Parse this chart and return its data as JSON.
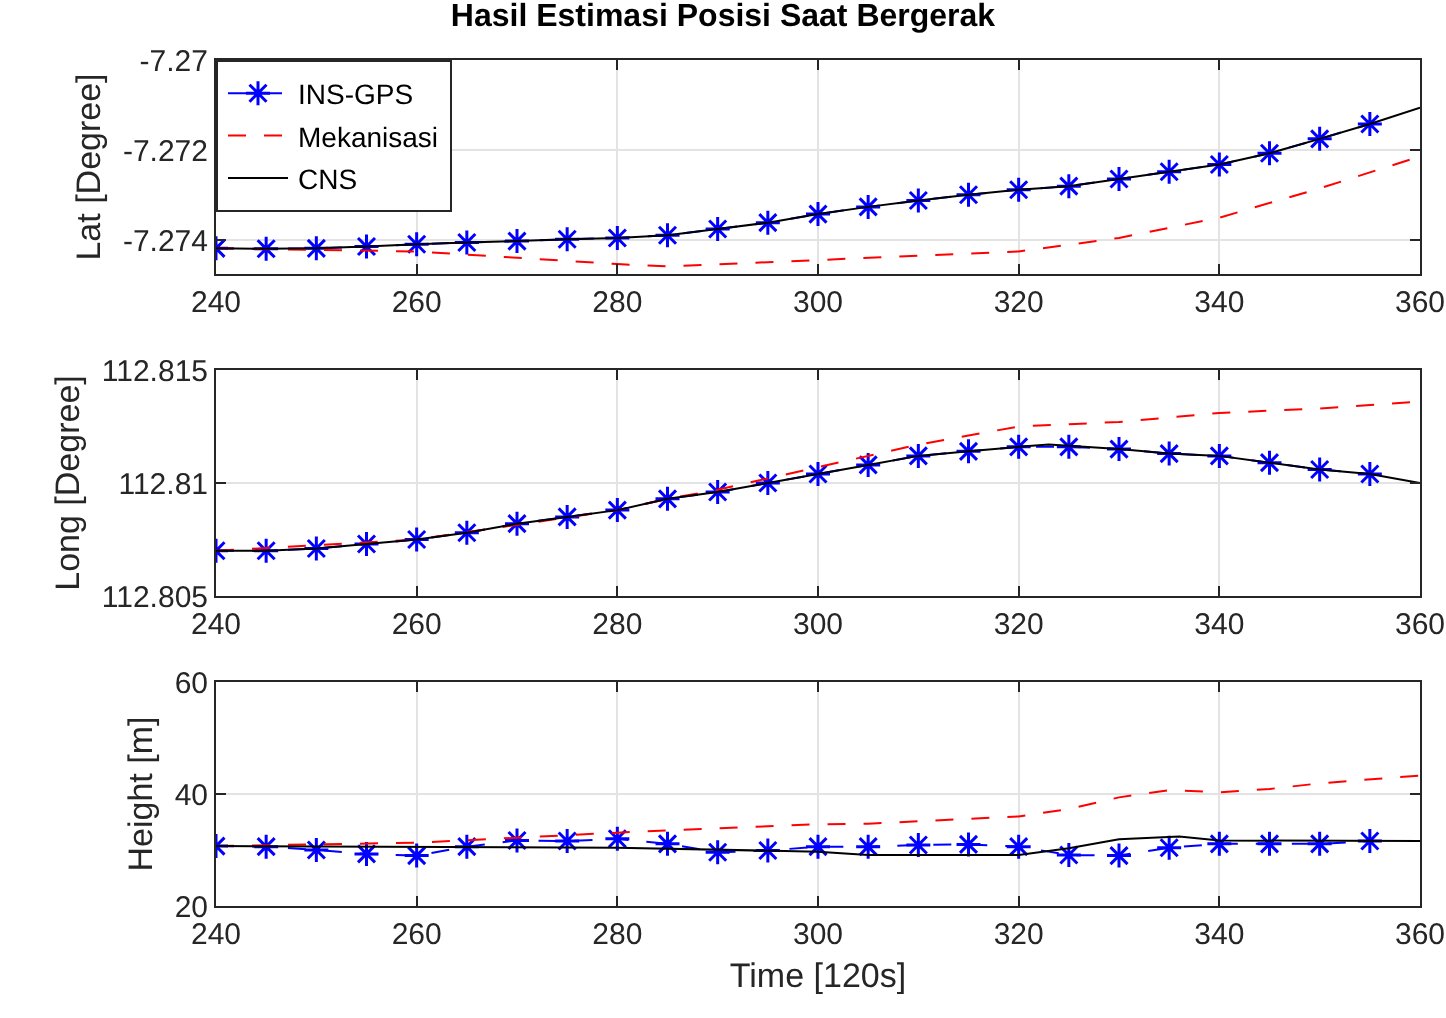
{
  "chart_data": [
    {
      "type": "line",
      "title": "Hasil Estimasi Posisi Saat Bergerak",
      "ylabel": "Lat [Degree]",
      "xlim": [
        240,
        360
      ],
      "xticks": [
        240,
        260,
        280,
        300,
        320,
        340,
        360
      ],
      "ylim": [
        -7.27475,
        -7.27
      ],
      "yticks": [
        -7.274,
        -7.272,
        -7.27
      ],
      "grid": true,
      "legend": "top left",
      "series": [
        {
          "name": "INS-GPS",
          "color": "#0000ff",
          "marker": "cross",
          "line_style": "dashed",
          "x": [
            240,
            245,
            250,
            255,
            260,
            265,
            270,
            275,
            280,
            285,
            290,
            295,
            300,
            305,
            310,
            315,
            320,
            325,
            330,
            335,
            340,
            345,
            350,
            355
          ],
          "values": [
            -7.27418,
            -7.27419,
            -7.27418,
            -7.27414,
            -7.27409,
            -7.27405,
            -7.27402,
            -7.27398,
            -7.27395,
            -7.27389,
            -7.27375,
            -7.27361,
            -7.27342,
            -7.27326,
            -7.27312,
            -7.27299,
            -7.27288,
            -7.2728,
            -7.27264,
            -7.27248,
            -7.27232,
            -7.27207,
            -7.27175,
            -7.27142
          ]
        },
        {
          "name": "Mekanisasi",
          "color": "#ff0000",
          "marker": "none",
          "line_style": "dashed",
          "x": [
            240,
            260,
            280,
            285,
            300,
            320,
            330,
            340,
            350,
            360
          ],
          "values": [
            -7.27418,
            -7.27425,
            -7.27453,
            -7.27458,
            -7.27444,
            -7.27425,
            -7.27395,
            -7.2735,
            -7.27285,
            -7.27214
          ]
        },
        {
          "name": "CNS",
          "color": "#000000",
          "marker": "none",
          "line_style": "solid",
          "x": [
            240,
            245,
            250,
            255,
            260,
            265,
            270,
            275,
            280,
            285,
            290,
            295,
            300,
            305,
            310,
            315,
            320,
            325,
            330,
            335,
            340,
            345,
            350,
            355,
            360
          ],
          "values": [
            -7.27418,
            -7.27419,
            -7.27418,
            -7.27414,
            -7.27409,
            -7.27405,
            -7.27402,
            -7.27398,
            -7.27395,
            -7.27389,
            -7.27375,
            -7.27361,
            -7.27342,
            -7.27326,
            -7.27312,
            -7.27299,
            -7.27288,
            -7.2728,
            -7.27264,
            -7.27248,
            -7.27232,
            -7.27207,
            -7.27175,
            -7.27142,
            -7.27106
          ]
        }
      ]
    },
    {
      "type": "line",
      "ylabel": "Long [Degree]",
      "xlim": [
        240,
        360
      ],
      "xticks": [
        240,
        260,
        280,
        300,
        320,
        340,
        360
      ],
      "ylim": [
        112.805,
        112.815
      ],
      "yticks": [
        112.805,
        112.81,
        112.815
      ],
      "grid": true,
      "series": [
        {
          "color": "#0000ff",
          "marker": "cross",
          "line_style": "dashed",
          "x": [
            240,
            245,
            250,
            255,
            260,
            265,
            270,
            275,
            280,
            285,
            290,
            295,
            300,
            305,
            310,
            315,
            320,
            325,
            330,
            335,
            340,
            345,
            350,
            355
          ],
          "values": [
            112.807,
            112.807,
            112.8071,
            112.8073,
            112.8075,
            112.8078,
            112.8082,
            112.8085,
            112.8088,
            112.8093,
            112.8096,
            112.81,
            112.8104,
            112.8108,
            112.8112,
            112.8114,
            112.8116,
            112.8116,
            112.8115,
            112.8113,
            112.8112,
            112.8109,
            112.8106,
            112.8104
          ]
        },
        {
          "color": "#ff0000",
          "marker": "none",
          "line_style": "dashed",
          "x": [
            240,
            260,
            280,
            285,
            290,
            300,
            310,
            320,
            330,
            340,
            350,
            360
          ],
          "values": [
            112.807,
            112.8075,
            112.8088,
            112.8093,
            112.8097,
            112.8107,
            112.8117,
            112.8125,
            112.8127,
            112.8131,
            112.8133,
            112.8136
          ]
        },
        {
          "color": "#000000",
          "marker": "none",
          "line_style": "solid",
          "x": [
            240,
            245,
            250,
            255,
            260,
            265,
            270,
            275,
            280,
            285,
            290,
            295,
            300,
            305,
            310,
            315,
            320,
            323,
            330,
            335,
            340,
            345,
            350,
            355,
            360
          ],
          "values": [
            112.807,
            112.807,
            112.8071,
            112.8073,
            112.8075,
            112.8078,
            112.8082,
            112.8085,
            112.8088,
            112.8093,
            112.8096,
            112.81,
            112.8104,
            112.8108,
            112.8112,
            112.8114,
            112.8116,
            112.8117,
            112.8115,
            112.8113,
            112.8112,
            112.8109,
            112.8106,
            112.8104,
            112.81
          ]
        }
      ]
    },
    {
      "type": "line",
      "ylabel": "Height [m]",
      "xlabel": "Time [120s]",
      "xlim": [
        240,
        360
      ],
      "xticks": [
        240,
        260,
        280,
        300,
        320,
        340,
        360
      ],
      "ylim": [
        20,
        60
      ],
      "yticks": [
        20,
        40,
        60
      ],
      "grid": true,
      "series": [
        {
          "color": "#0000ff",
          "marker": "cross",
          "line_style": "dashed",
          "x": [
            240,
            245,
            250,
            255,
            260,
            265,
            270,
            275,
            280,
            285,
            290,
            295,
            300,
            305,
            310,
            315,
            320,
            325,
            330,
            335,
            340,
            345,
            350,
            355
          ],
          "values": [
            30.7,
            30.6,
            30.0,
            29.3,
            29.0,
            30.6,
            31.7,
            31.6,
            32.0,
            31.1,
            29.6,
            29.9,
            30.6,
            30.6,
            30.9,
            31.0,
            30.6,
            29.1,
            29.0,
            30.4,
            31.1,
            31.1,
            31.1,
            31.6
          ]
        },
        {
          "color": "#ff0000",
          "marker": "none",
          "line_style": "dashed",
          "x": [
            240,
            260,
            280,
            300,
            305,
            320,
            325,
            330,
            335,
            340,
            345,
            350,
            360
          ],
          "values": [
            30.7,
            31.3,
            33.1,
            34.6,
            34.7,
            36.0,
            37.3,
            39.4,
            40.7,
            40.3,
            40.9,
            41.9,
            43.3
          ]
        },
        {
          "color": "#000000",
          "marker": "none",
          "line_style": "solid",
          "x": [
            240,
            280,
            300,
            305,
            320,
            325,
            330,
            336,
            340,
            360
          ],
          "values": [
            30.7,
            30.4,
            29.7,
            29.1,
            29.1,
            30.3,
            31.9,
            32.4,
            31.7,
            31.6
          ]
        }
      ]
    }
  ]
}
